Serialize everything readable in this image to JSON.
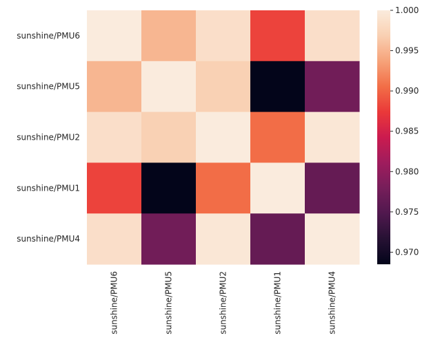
{
  "chart_data": {
    "type": "heatmap",
    "title": "",
    "xlabel": "",
    "ylabel": "",
    "rows": [
      "sunshine/PMU6",
      "sunshine/PMU5",
      "sunshine/PMU2",
      "sunshine/PMU1",
      "sunshine/PMU4"
    ],
    "columns": [
      "sunshine/PMU6",
      "sunshine/PMU5",
      "sunshine/PMU2",
      "sunshine/PMU1",
      "sunshine/PMU4"
    ],
    "values": [
      [
        1.0,
        0.995,
        0.9985,
        0.988,
        0.9985
      ],
      [
        0.995,
        1.0,
        0.997,
        0.9685,
        0.9775
      ],
      [
        0.9985,
        0.997,
        1.0,
        0.9905,
        0.9995
      ],
      [
        0.988,
        0.9685,
        0.9905,
        1.0,
        0.9765
      ],
      [
        0.9985,
        0.9775,
        0.9995,
        0.9765,
        1.0
      ]
    ],
    "colorbar": {
      "min": 0.9685,
      "max": 1.0,
      "ticks": [
        0.97,
        0.975,
        0.98,
        0.985,
        0.99,
        0.995,
        1.0
      ],
      "tick_labels": [
        "0.970",
        "0.975",
        "0.980",
        "0.985",
        "0.990",
        "0.995",
        "1.000"
      ],
      "colormap": "rocket"
    }
  }
}
